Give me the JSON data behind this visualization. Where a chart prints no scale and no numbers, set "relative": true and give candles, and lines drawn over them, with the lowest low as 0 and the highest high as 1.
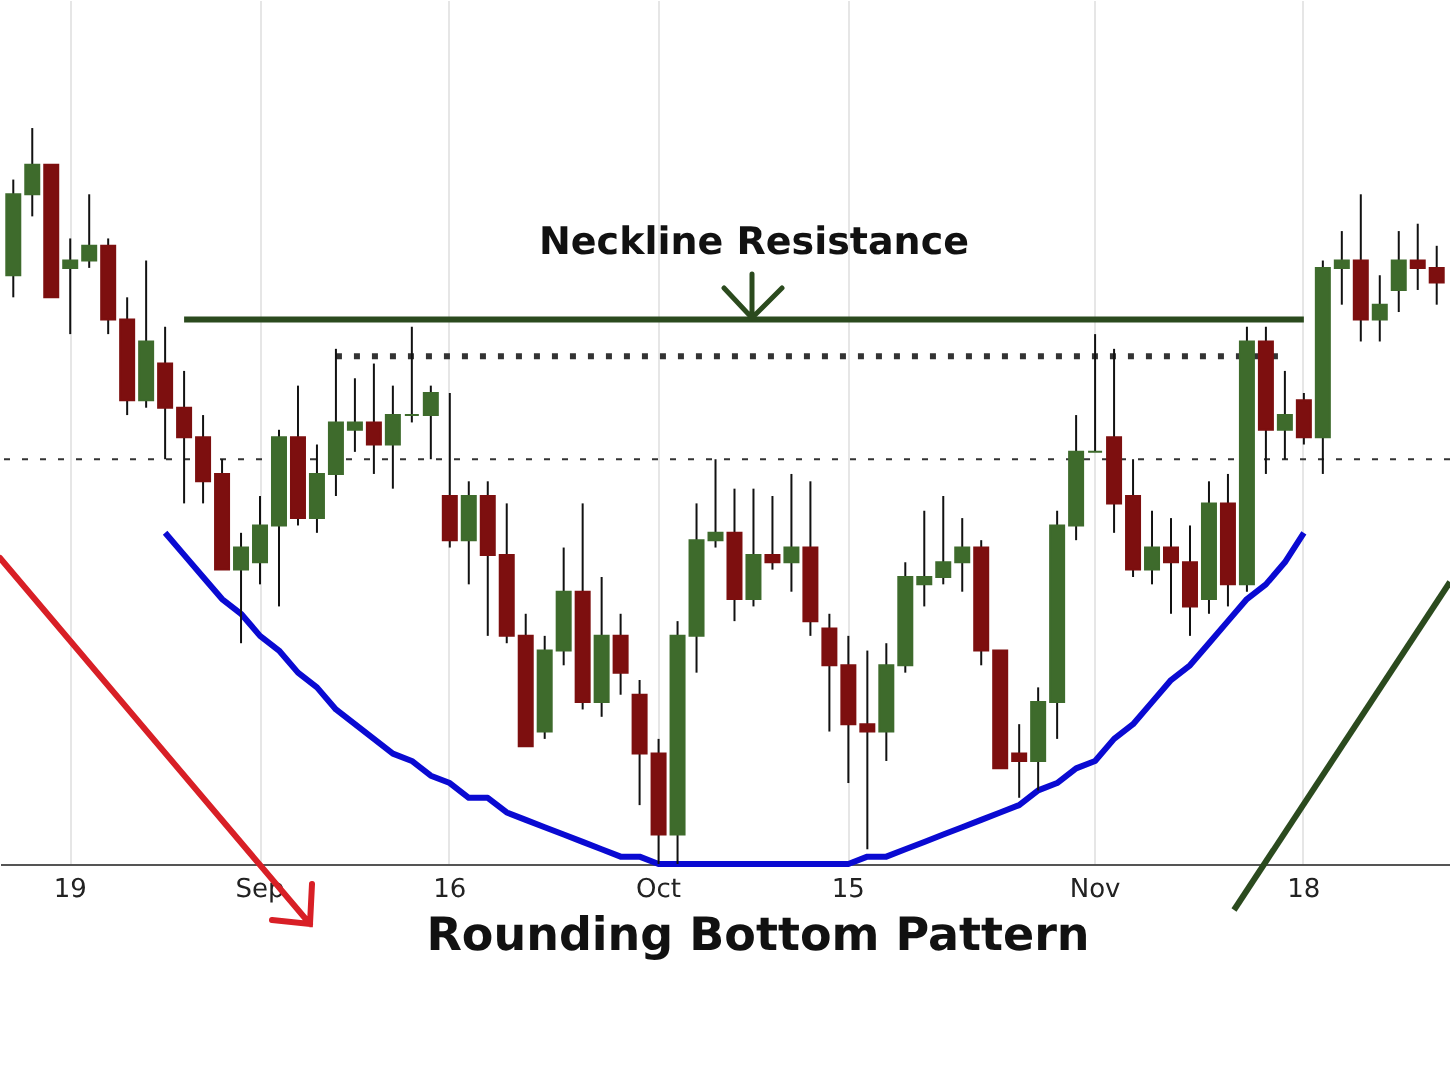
{
  "chart_data": {
    "type": "candlestick",
    "relative": true,
    "grid": "x",
    "categories": [
      null,
      null,
      null,
      "19",
      null,
      null,
      null,
      null,
      null,
      null,
      null,
      null,
      null,
      "Sep",
      null,
      null,
      null,
      null,
      null,
      null,
      null,
      null,
      null,
      "16",
      null,
      null,
      null,
      null,
      null,
      null,
      null,
      null,
      null,
      null,
      "Oct",
      null,
      null,
      null,
      null,
      null,
      null,
      null,
      null,
      null,
      "15",
      null,
      null,
      null,
      null,
      null,
      null,
      null,
      null,
      null,
      null,
      null,
      null,
      "Nov",
      null,
      null,
      null,
      null,
      null,
      null,
      null,
      null,
      null,
      null,
      "18",
      null,
      null,
      null,
      null,
      null,
      null,
      null
    ],
    "ohlc": [
      [
        0.8,
        0.93,
        0.77,
        0.91
      ],
      [
        0.91,
        1.0,
        0.88,
        0.95
      ],
      [
        0.95,
        0.95,
        0.77,
        0.77
      ],
      [
        0.81,
        0.85,
        0.72,
        0.82
      ],
      [
        0.82,
        0.91,
        0.81,
        0.84
      ],
      [
        0.84,
        0.85,
        0.72,
        0.74
      ],
      [
        0.74,
        0.77,
        0.61,
        0.63
      ],
      [
        0.63,
        0.82,
        0.62,
        0.71
      ],
      [
        0.68,
        0.73,
        0.55,
        0.62
      ],
      [
        0.62,
        0.67,
        0.49,
        0.58
      ],
      [
        0.58,
        0.61,
        0.49,
        0.52
      ],
      [
        0.53,
        0.55,
        0.4,
        0.4
      ],
      [
        0.4,
        0.45,
        0.3,
        0.43
      ],
      [
        0.41,
        0.5,
        0.38,
        0.46
      ],
      [
        0.46,
        0.59,
        0.35,
        0.58
      ],
      [
        0.58,
        0.65,
        0.46,
        0.47
      ],
      [
        0.47,
        0.57,
        0.45,
        0.53
      ],
      [
        0.53,
        0.7,
        0.5,
        0.6
      ],
      [
        0.59,
        0.66,
        0.56,
        0.6
      ],
      [
        0.6,
        0.68,
        0.53,
        0.57
      ],
      [
        0.57,
        0.65,
        0.51,
        0.61
      ],
      [
        0.61,
        0.73,
        0.6,
        0.61
      ],
      [
        0.61,
        0.65,
        0.55,
        0.64
      ],
      [
        0.5,
        0.64,
        0.43,
        0.44
      ],
      [
        0.44,
        0.52,
        0.38,
        0.5
      ],
      [
        0.5,
        0.52,
        0.31,
        0.42
      ],
      [
        0.42,
        0.49,
        0.3,
        0.31
      ],
      [
        0.31,
        0.34,
        0.16,
        0.16
      ],
      [
        0.18,
        0.31,
        0.17,
        0.29
      ],
      [
        0.29,
        0.43,
        0.27,
        0.37
      ],
      [
        0.37,
        0.49,
        0.21,
        0.22
      ],
      [
        0.22,
        0.39,
        0.2,
        0.31
      ],
      [
        0.31,
        0.34,
        0.23,
        0.26
      ],
      [
        0.23,
        0.25,
        0.08,
        0.15
      ],
      [
        0.15,
        0.17,
        0.0,
        0.04
      ],
      [
        0.04,
        0.33,
        0.0,
        0.31
      ],
      [
        0.31,
        0.49,
        0.26,
        0.44
      ],
      [
        0.44,
        0.55,
        0.43,
        0.45
      ],
      [
        0.45,
        0.51,
        0.33,
        0.36
      ],
      [
        0.36,
        0.51,
        0.35,
        0.42
      ],
      [
        0.42,
        0.5,
        0.4,
        0.41
      ],
      [
        0.41,
        0.53,
        0.37,
        0.43
      ],
      [
        0.43,
        0.52,
        0.31,
        0.33
      ],
      [
        0.32,
        0.34,
        0.18,
        0.27
      ],
      [
        0.27,
        0.31,
        0.11,
        0.19
      ],
      [
        0.19,
        0.29,
        0.02,
        0.18
      ],
      [
        0.18,
        0.3,
        0.14,
        0.27
      ],
      [
        0.27,
        0.41,
        0.26,
        0.39
      ],
      [
        0.38,
        0.48,
        0.35,
        0.39
      ],
      [
        0.39,
        0.5,
        0.38,
        0.41
      ],
      [
        0.41,
        0.47,
        0.37,
        0.43
      ],
      [
        0.43,
        0.44,
        0.27,
        0.29
      ],
      [
        0.29,
        0.29,
        0.13,
        0.13
      ],
      [
        0.15,
        0.19,
        0.09,
        0.14
      ],
      [
        0.14,
        0.24,
        0.1,
        0.22
      ],
      [
        0.22,
        0.48,
        0.17,
        0.46
      ],
      [
        0.46,
        0.61,
        0.44,
        0.56
      ],
      [
        0.56,
        0.72,
        0.56,
        0.56
      ],
      [
        0.58,
        0.7,
        0.45,
        0.49
      ],
      [
        0.5,
        0.55,
        0.39,
        0.4
      ],
      [
        0.4,
        0.48,
        0.38,
        0.43
      ],
      [
        0.43,
        0.47,
        0.34,
        0.41
      ],
      [
        0.41,
        0.46,
        0.31,
        0.35
      ],
      [
        0.36,
        0.52,
        0.34,
        0.49
      ],
      [
        0.49,
        0.53,
        0.35,
        0.38
      ],
      [
        0.38,
        0.73,
        0.37,
        0.71
      ],
      [
        0.71,
        0.73,
        0.53,
        0.59
      ],
      [
        0.59,
        0.67,
        0.55,
        0.61
      ],
      [
        0.63,
        0.64,
        0.57,
        0.58
      ],
      [
        0.58,
        0.82,
        0.53,
        0.81
      ],
      [
        0.81,
        0.86,
        0.76,
        0.82
      ],
      [
        0.82,
        0.91,
        0.71,
        0.74
      ],
      [
        0.74,
        0.8,
        0.71,
        0.76
      ],
      [
        0.78,
        0.86,
        0.75,
        0.82
      ],
      [
        0.82,
        0.87,
        0.78,
        0.81
      ],
      [
        0.81,
        0.84,
        0.76,
        0.79
      ]
    ],
    "colors": [
      "#3e6b2c",
      "#3e6b2c",
      "#7d0f0f",
      "#3e6b2c",
      "#3e6b2c",
      "#7d0f0f",
      "#7d0f0f",
      "#3e6b2c",
      "#7d0f0f",
      "#7d0f0f",
      "#7d0f0f",
      "#7d0f0f",
      "#3e6b2c",
      "#3e6b2c",
      "#3e6b2c",
      "#7d0f0f",
      "#3e6b2c",
      "#3e6b2c",
      "#3e6b2c",
      "#7d0f0f",
      "#3e6b2c",
      "#3e6b2c",
      "#3e6b2c",
      "#7d0f0f",
      "#3e6b2c",
      "#7d0f0f",
      "#7d0f0f",
      "#7d0f0f",
      "#3e6b2c",
      "#3e6b2c",
      "#7d0f0f",
      "#3e6b2c",
      "#7d0f0f",
      "#7d0f0f",
      "#7d0f0f",
      "#3e6b2c",
      "#3e6b2c",
      "#3e6b2c",
      "#7d0f0f",
      "#3e6b2c",
      "#7d0f0f",
      "#3e6b2c",
      "#7d0f0f",
      "#7d0f0f",
      "#7d0f0f",
      "#7d0f0f",
      "#3e6b2c",
      "#3e6b2c",
      "#3e6b2c",
      "#3e6b2c",
      "#3e6b2c",
      "#7d0f0f",
      "#7d0f0f",
      "#7d0f0f",
      "#3e6b2c",
      "#3e6b2c",
      "#3e6b2c",
      "#3e6b2c",
      "#7d0f0f",
      "#7d0f0f",
      "#3e6b2c",
      "#7d0f0f",
      "#7d0f0f",
      "#3e6b2c",
      "#7d0f0f",
      "#3e6b2c",
      "#7d0f0f",
      "#3e6b2c",
      "#7d0f0f",
      "#3e6b2c",
      "#3e6b2c",
      "#7d0f0f",
      "#3e6b2c",
      "#3e6b2c",
      "#7d0f0f",
      "#7d0f0f"
    ],
    "series": [
      {
        "type": "line",
        "color": "#0a0ad2",
        "values": [
          null,
          null,
          null,
          null,
          null,
          null,
          null,
          null,
          0.45,
          0.42,
          0.39,
          0.36,
          0.34,
          0.31,
          0.29,
          0.26,
          0.24,
          0.21,
          0.19,
          0.17,
          0.15,
          0.14,
          0.12,
          0.11,
          0.09,
          0.09,
          0.07,
          0.06,
          0.05,
          0.04,
          0.03,
          0.02,
          0.01,
          0.01,
          0,
          0,
          0,
          0,
          0,
          0,
          0,
          0,
          0,
          0,
          0,
          0.01,
          0.01,
          0.02,
          0.03,
          0.04,
          0.05,
          0.06,
          0.07,
          0.08,
          0.1,
          0.11,
          0.13,
          0.14,
          0.17,
          0.19,
          0.22,
          0.25,
          0.27,
          0.3,
          0.33,
          0.36,
          0.38,
          0.41,
          0.45,
          null,
          null,
          null,
          null,
          null,
          null,
          null
        ]
      },
      {
        "type": "line",
        "color": "#2b4a1e",
        "line_style": "solid",
        "values": [
          null,
          null,
          null,
          null,
          null,
          null,
          null,
          null,
          null,
          0.74,
          0.74,
          0.74,
          0.74,
          0.74,
          0.74,
          0.74,
          0.74,
          0.74,
          0.74,
          0.74,
          0.74,
          0.74,
          0.74,
          0.74,
          0.74,
          0.74,
          0.74,
          0.74,
          0.74,
          0.74,
          0.74,
          0.74,
          0.74,
          0.74,
          0.74,
          0.74,
          0.74,
          0.74,
          0.74,
          0.74,
          0.74,
          0.74,
          0.74,
          0.74,
          0.74,
          0.74,
          0.74,
          0.74,
          0.74,
          0.74,
          0.74,
          0.74,
          0.74,
          0.74,
          0.74,
          0.74,
          0.74,
          0.74,
          0.74,
          0.74,
          0.74,
          0.74,
          0.74,
          0.74,
          0.74,
          0.74,
          0.74,
          0.74,
          0.74,
          null,
          null,
          null,
          null,
          null,
          null,
          null
        ]
      },
      {
        "type": "line",
        "color": "#333333",
        "line_style": "dotted",
        "values": [
          null,
          null,
          null,
          null,
          null,
          null,
          null,
          null,
          null,
          null,
          null,
          null,
          null,
          null,
          null,
          null,
          null,
          0.69,
          0.69,
          0.69,
          0.69,
          0.69,
          0.69,
          0.69,
          0.69,
          0.69,
          0.69,
          0.69,
          0.69,
          0.69,
          0.69,
          0.69,
          0.69,
          0.69,
          0.69,
          0.69,
          0.69,
          0.69,
          0.69,
          0.69,
          0.69,
          0.69,
          0.69,
          0.69,
          0.69,
          0.69,
          0.69,
          0.69,
          0.69,
          0.69,
          0.69,
          0.69,
          0.69,
          0.69,
          0.69,
          0.69,
          0.69,
          0.69,
          0.69,
          0.69,
          0.69,
          0.69,
          0.69,
          0.69,
          0.69,
          0.69,
          0.69,
          0.69,
          null,
          null,
          null,
          null,
          null,
          null,
          null,
          null
        ]
      }
    ],
    "ref_lines": [
      {
        "axis": "y",
        "value": 0.55,
        "color": "#333333",
        "line_style": "dotted"
      }
    ],
    "annotations": [
      "Neckline Resistance",
      "Rounding Bottom Pattern"
    ]
  }
}
